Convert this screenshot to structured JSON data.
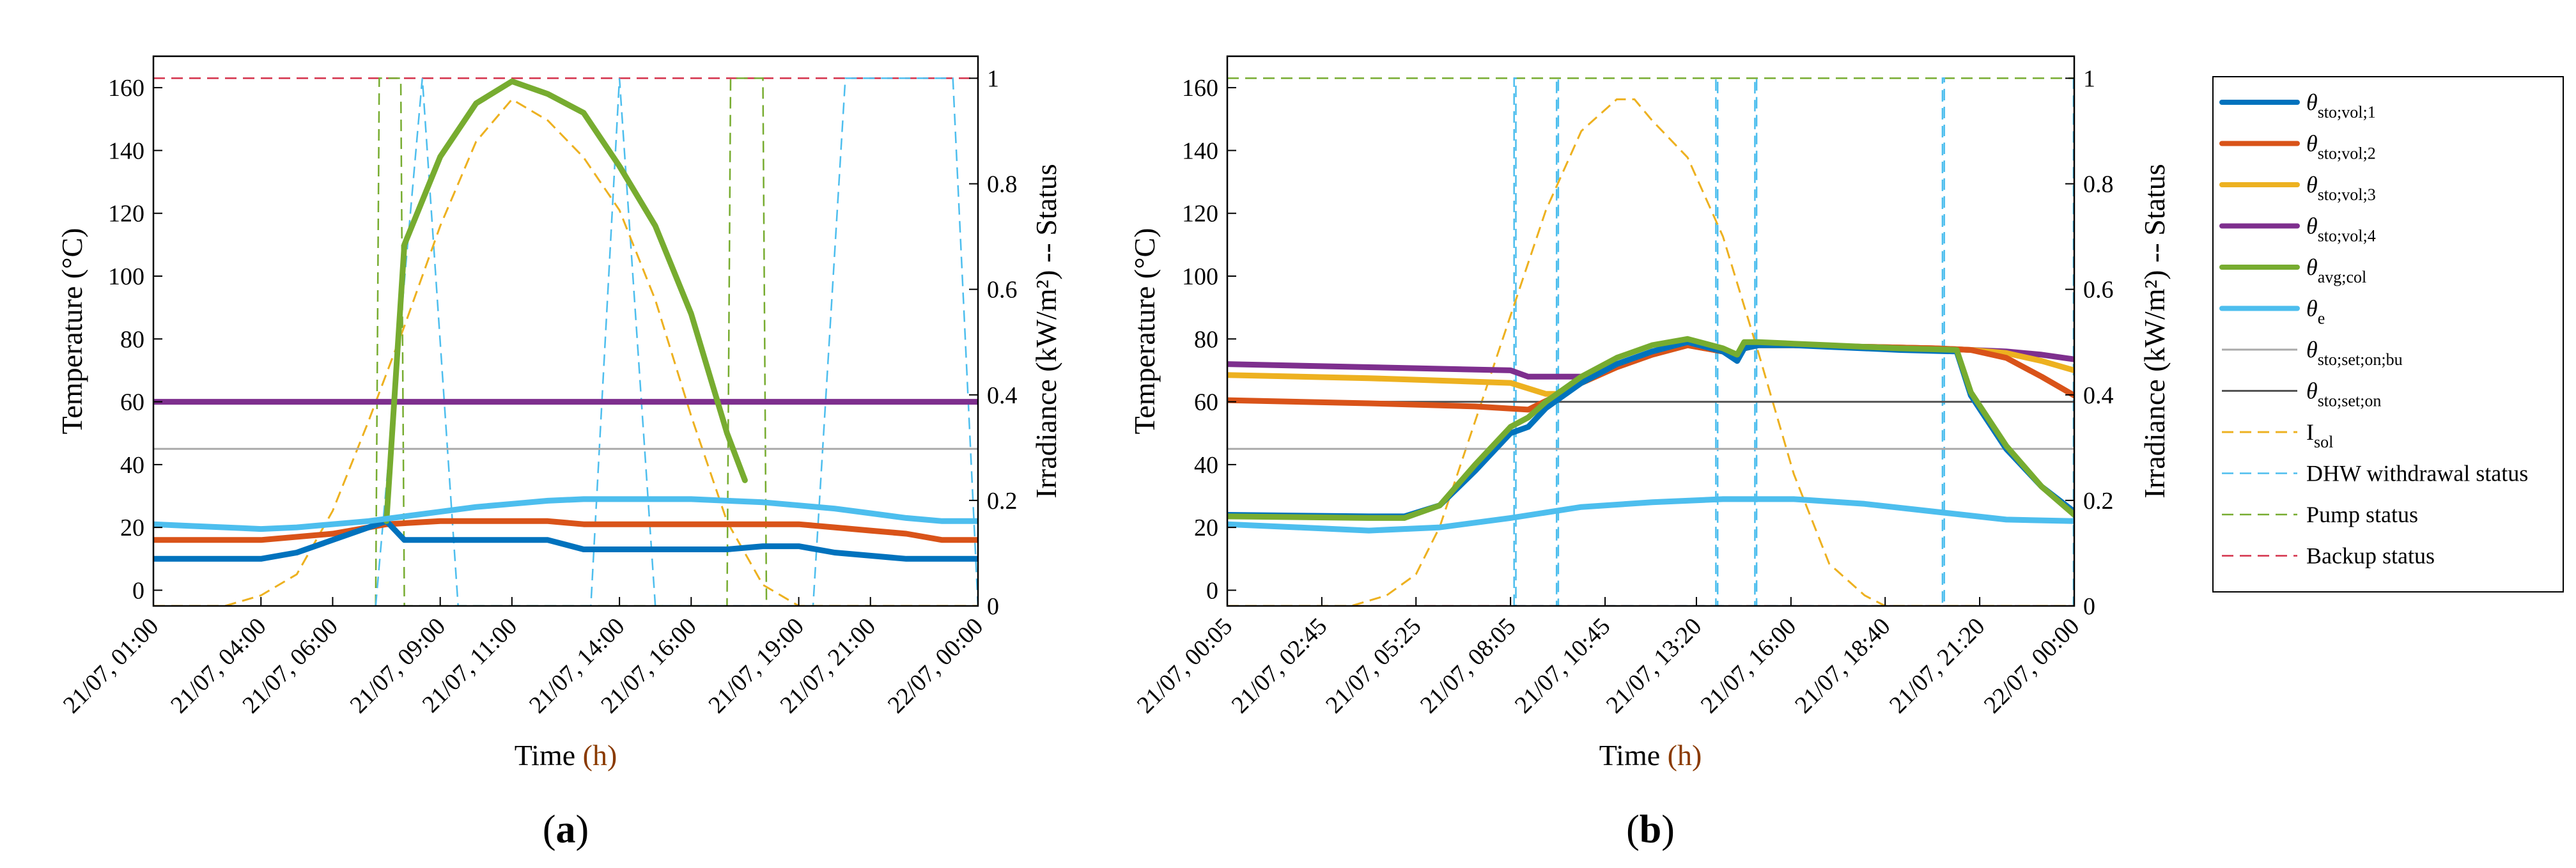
{
  "series_colors": {
    "sto1": "#0072BD",
    "sto2": "#D95319",
    "sto3": "#EDB120",
    "sto4": "#7E2F8E",
    "col": "#77AC30",
    "e": "#4DBEEE",
    "setbu": "#AAAAAA",
    "seton": "#555555",
    "isol": "#EDB120",
    "dhw": "#4DBEEE",
    "pump": "#77AC30",
    "backup": "#D4304A"
  },
  "legend": {
    "items": [
      {
        "key": "sto1",
        "style": "solid",
        "main": "θ",
        "sub": "sto;vol;1"
      },
      {
        "key": "sto2",
        "style": "solid",
        "main": "θ",
        "sub": "sto;vol;2"
      },
      {
        "key": "sto3",
        "style": "solid",
        "main": "θ",
        "sub": "sto;vol;3"
      },
      {
        "key": "sto4",
        "style": "solid",
        "main": "θ",
        "sub": "sto;vol;4"
      },
      {
        "key": "col",
        "style": "solid",
        "main": "θ",
        "sub": "avg;col"
      },
      {
        "key": "e",
        "style": "solid",
        "main": "θ",
        "sub": "e"
      },
      {
        "key": "setbu",
        "style": "thin",
        "main": "θ",
        "sub": "sto;set;on;bu"
      },
      {
        "key": "seton",
        "style": "thin",
        "main": "θ",
        "sub": "sto;set;on"
      },
      {
        "key": "isol",
        "style": "dash",
        "main": "I",
        "sub": "sol"
      },
      {
        "key": "dhw",
        "style": "dash",
        "main": "DHW withdrawal status",
        "sub": ""
      },
      {
        "key": "pump",
        "style": "dash",
        "main": "Pump status",
        "sub": ""
      },
      {
        "key": "backup",
        "style": "dash",
        "main": "Backup status",
        "sub": ""
      }
    ]
  },
  "chart_data": [
    {
      "panel": "(a)",
      "panel_label_open": "(",
      "panel_label_letter": "a",
      "panel_label_close": ")",
      "type": "line",
      "xlabel_main": "Time",
      "xlabel_unit": "(h)",
      "ylabel": "Temperature (°C)",
      "y2label": "Irradiance (kW/m²) -- Status",
      "x_range": [
        0,
        23
      ],
      "ylim": [
        -5,
        170
      ],
      "y2lim": [
        0,
        1.0417
      ],
      "yticks": [
        0,
        20,
        40,
        60,
        80,
        100,
        120,
        140,
        160
      ],
      "y2ticks": [
        0,
        0.2,
        0.4,
        0.6,
        0.8,
        1
      ],
      "y2tick_labels": [
        "0",
        "0.2",
        "0.4",
        "0.6",
        "0.8",
        "1"
      ],
      "xticks": [
        0,
        3,
        5,
        8,
        10,
        13,
        15,
        18,
        20,
        23
      ],
      "xtick_labels": [
        "21/07, 01:00",
        "21/07, 04:00",
        "21/07, 06:00",
        "21/07, 09:00",
        "21/07, 11:00",
        "21/07, 14:00",
        "21/07, 16:00",
        "21/07, 19:00",
        "21/07, 21:00",
        "22/07, 00:00"
      ],
      "series": [
        {
          "name": "θsto;vol;1",
          "key": "sto1",
          "axis": "left",
          "x": [
            0,
            3,
            4,
            5,
            6,
            6.5,
            7,
            8,
            9,
            10,
            11,
            12,
            13,
            14,
            15,
            16,
            17,
            18,
            19,
            20,
            21,
            22,
            23
          ],
          "y": [
            10,
            10,
            12,
            16,
            20,
            22,
            16,
            16,
            16,
            16,
            16,
            13,
            13,
            13,
            13,
            13,
            14,
            14,
            12,
            11,
            10,
            10,
            10
          ]
        },
        {
          "name": "θsto;vol;2",
          "key": "sto2",
          "axis": "left",
          "x": [
            0,
            3,
            5,
            6.5,
            8,
            10,
            11,
            12,
            14,
            16,
            18,
            19,
            20,
            21,
            22,
            23
          ],
          "y": [
            16,
            16,
            18,
            21,
            22,
            22,
            22,
            21,
            21,
            21,
            21,
            20,
            19,
            18,
            16,
            16
          ]
        },
        {
          "name": "θsto;vol;4",
          "key": "sto4",
          "axis": "left",
          "x": [
            0,
            23
          ],
          "y": [
            60,
            60
          ]
        },
        {
          "name": "θavg;col",
          "key": "col",
          "axis": "left",
          "x": [
            6.5,
            7,
            8,
            9,
            10,
            11,
            12,
            13,
            14,
            15,
            16,
            16.5
          ],
          "y": [
            22,
            110,
            138,
            155,
            162,
            158,
            152,
            135,
            116,
            88,
            50,
            35
          ]
        },
        {
          "name": "θe",
          "key": "e",
          "axis": "left",
          "x": [
            0,
            1,
            2,
            3,
            4,
            5,
            6,
            7,
            8,
            9,
            10,
            11,
            12,
            13,
            14,
            15,
            16,
            17,
            18,
            19,
            20,
            21,
            22,
            23
          ],
          "y": [
            21,
            20.5,
            20,
            19.5,
            20,
            21,
            22,
            23.5,
            25,
            26.5,
            27.5,
            28.5,
            29,
            29,
            29,
            29,
            28.5,
            28,
            27,
            26,
            24.5,
            23,
            22,
            22
          ]
        },
        {
          "name": "θsto;set;on;bu",
          "key": "setbu",
          "axis": "left",
          "x": [
            0,
            23
          ],
          "y": [
            45,
            45
          ]
        },
        {
          "name": "Isol",
          "key": "isol",
          "axis": "right",
          "x": [
            0,
            2,
            3,
            4,
            5,
            6,
            7,
            8,
            9,
            10,
            11,
            12,
            13,
            14,
            15,
            16,
            17,
            18,
            19,
            20,
            23
          ],
          "y": [
            0,
            0,
            0.02,
            0.06,
            0.18,
            0.35,
            0.53,
            0.72,
            0.88,
            0.96,
            0.92,
            0.85,
            0.75,
            0.58,
            0.36,
            0.16,
            0.04,
            0,
            0,
            0,
            0
          ]
        },
        {
          "name": "DHW withdrawal status",
          "key": "dhw",
          "axis": "right",
          "x": [
            6.2,
            7.5,
            8.5,
            12.2,
            13.0,
            14.0,
            18.4,
            19.3,
            22.3,
            23.0
          ],
          "y": [
            0,
            1,
            0,
            0,
            1,
            0,
            0,
            1,
            1,
            0
          ]
        },
        {
          "name": "Pump status",
          "key": "pump",
          "axis": "right",
          "x": [
            6.2,
            6.3,
            6.9,
            7.0,
            16.0,
            16.1,
            17.0,
            17.1
          ],
          "y": [
            0,
            1,
            1,
            0,
            0,
            1,
            1,
            0
          ]
        },
        {
          "name": "Backup status",
          "key": "backup",
          "axis": "right",
          "x": [
            0,
            23
          ],
          "y": [
            1,
            1
          ]
        }
      ]
    },
    {
      "panel": "(b)",
      "panel_label_open": "(",
      "panel_label_letter": "b",
      "panel_label_close": ")",
      "type": "line",
      "xlabel_main": "Time",
      "xlabel_unit": "(h)",
      "ylabel": "Temperature (°C)",
      "y2label": "Irradiance (kW/m²) -- Status",
      "x_range": [
        0,
        23.92
      ],
      "ylim": [
        -5,
        170
      ],
      "y2lim": [
        0,
        1.0417
      ],
      "yticks": [
        0,
        20,
        40,
        60,
        80,
        100,
        120,
        140,
        160
      ],
      "y2ticks": [
        0,
        0.2,
        0.4,
        0.6,
        0.8,
        1
      ],
      "y2tick_labels": [
        "0",
        "0.2",
        "0.4",
        "0.6",
        "0.8",
        "1"
      ],
      "xticks": [
        0,
        2.67,
        5.33,
        8,
        10.67,
        13.25,
        15.92,
        18.58,
        21.25,
        23.92
      ],
      "xtick_labels": [
        "21/07, 00:05",
        "21/07, 02:45",
        "21/07, 05:25",
        "21/07, 08:05",
        "21/07, 10:45",
        "21/07, 13:20",
        "21/07, 16:00",
        "21/07, 18:40",
        "21/07, 21:20",
        "22/07, 00:00"
      ],
      "series": [
        {
          "name": "θsto;vol;1",
          "key": "sto1",
          "axis": "left",
          "x": [
            0,
            4,
            5,
            6,
            7,
            8,
            8.5,
            9,
            10,
            11,
            12,
            13,
            14,
            14.4,
            14.6,
            15,
            16,
            17,
            18,
            19,
            20.6,
            21,
            22,
            23,
            23.92
          ],
          "y": [
            24,
            23.5,
            23.5,
            27,
            38,
            50,
            52,
            58,
            66,
            72,
            76,
            79,
            76,
            73,
            77,
            78,
            78,
            77.5,
            77,
            76.5,
            76,
            62,
            45,
            33,
            25
          ]
        },
        {
          "name": "θsto;vol;2",
          "key": "sto2",
          "axis": "left",
          "x": [
            0,
            4,
            7,
            8.5,
            9.5,
            10,
            11,
            12,
            13,
            14,
            14.4,
            14.6,
            15,
            16,
            18,
            20,
            21,
            22,
            23,
            23.92
          ],
          "y": [
            60.5,
            59.5,
            58.5,
            57.5,
            63,
            66,
            71,
            75,
            78,
            76,
            74,
            77,
            78,
            78,
            77.5,
            77,
            76.5,
            74,
            68,
            62
          ]
        },
        {
          "name": "θsto;vol;3",
          "key": "sto3",
          "axis": "left",
          "x": [
            0,
            4,
            8,
            9,
            9.5,
            10,
            11,
            12,
            13,
            14,
            14.4,
            14.6,
            15,
            16,
            18,
            20,
            21,
            22,
            23,
            23.92
          ],
          "y": [
            68.5,
            67.5,
            66,
            62.5,
            62.5,
            66,
            71,
            75,
            78,
            76,
            74,
            77,
            78,
            78,
            77.5,
            77,
            76.5,
            75.5,
            73,
            70
          ]
        },
        {
          "name": "θsto;vol;4",
          "key": "sto4",
          "axis": "left",
          "x": [
            0,
            4,
            8,
            8.5,
            10,
            11,
            12,
            13,
            14,
            14.4,
            14.6,
            15,
            16,
            18,
            20,
            21,
            22,
            23,
            23.92
          ],
          "y": [
            72,
            71,
            70,
            68,
            68,
            71,
            75,
            78,
            76,
            74,
            77,
            78,
            78,
            77.5,
            77,
            76.5,
            76,
            75,
            73.5
          ]
        },
        {
          "name": "θavg;col",
          "key": "col",
          "axis": "left",
          "x": [
            0,
            4,
            5,
            6,
            7,
            8,
            8.5,
            9,
            10,
            11,
            12,
            13,
            14,
            14.4,
            14.6,
            15,
            16,
            17,
            18,
            19,
            20.6,
            21,
            22,
            23,
            23.92
          ],
          "y": [
            23.5,
            23,
            23,
            27,
            40,
            52,
            55,
            60,
            68,
            74,
            78,
            80,
            77,
            75,
            79,
            79,
            78.5,
            78,
            77.5,
            77,
            76.5,
            63,
            46,
            33,
            24
          ]
        },
        {
          "name": "θe",
          "key": "e",
          "axis": "left",
          "x": [
            0,
            2,
            4,
            6,
            8,
            10,
            12,
            14,
            16,
            18,
            20,
            22,
            23.92
          ],
          "y": [
            21,
            20,
            19,
            20,
            23,
            26.5,
            28,
            29,
            29,
            27.5,
            25,
            22.5,
            22
          ]
        },
        {
          "name": "θsto;set;on;bu",
          "key": "setbu",
          "axis": "left",
          "x": [
            0,
            23.92
          ],
          "y": [
            45,
            45
          ]
        },
        {
          "name": "θsto;set;on",
          "key": "seton",
          "axis": "left",
          "x": [
            0,
            23.92
          ],
          "y": [
            60,
            60
          ]
        },
        {
          "name": "Isol",
          "key": "isol",
          "axis": "right",
          "x": [
            0,
            2.67,
            3.5,
            4.5,
            5.33,
            6,
            7,
            8,
            9,
            10,
            11,
            11.5,
            12,
            13,
            14,
            15,
            16,
            17,
            18,
            18.58,
            19.5,
            23.92
          ],
          "y": [
            0,
            0,
            0,
            0.02,
            0.06,
            0.15,
            0.35,
            0.55,
            0.75,
            0.9,
            0.96,
            0.96,
            0.92,
            0.85,
            0.7,
            0.48,
            0.25,
            0.08,
            0.02,
            0,
            0,
            0
          ]
        },
        {
          "name": "DHW withdrawal status",
          "key": "dhw",
          "axis": "right",
          "x": [
            8.1,
            8.1,
            8.15,
            8.15,
            9.3,
            9.3,
            9.35,
            9.35,
            13.8,
            13.8,
            13.85,
            13.85,
            14.9,
            14.9,
            14.95,
            14.95,
            20.2,
            20.2,
            20.25,
            20.25,
            23.9,
            23.9
          ],
          "y": [
            0,
            1,
            1,
            0,
            0,
            1,
            1,
            0,
            0,
            1,
            1,
            0,
            0,
            1,
            1,
            0,
            0,
            1,
            1,
            0,
            0,
            1
          ]
        },
        {
          "name": "Pump status",
          "key": "pump",
          "axis": "right",
          "x": [
            0,
            23.92
          ],
          "y": [
            1,
            1
          ]
        },
        {
          "name": "Backup status",
          "key": "backup",
          "axis": "right",
          "x": [
            0,
            23.92
          ],
          "y": [
            0,
            0
          ]
        }
      ]
    }
  ]
}
